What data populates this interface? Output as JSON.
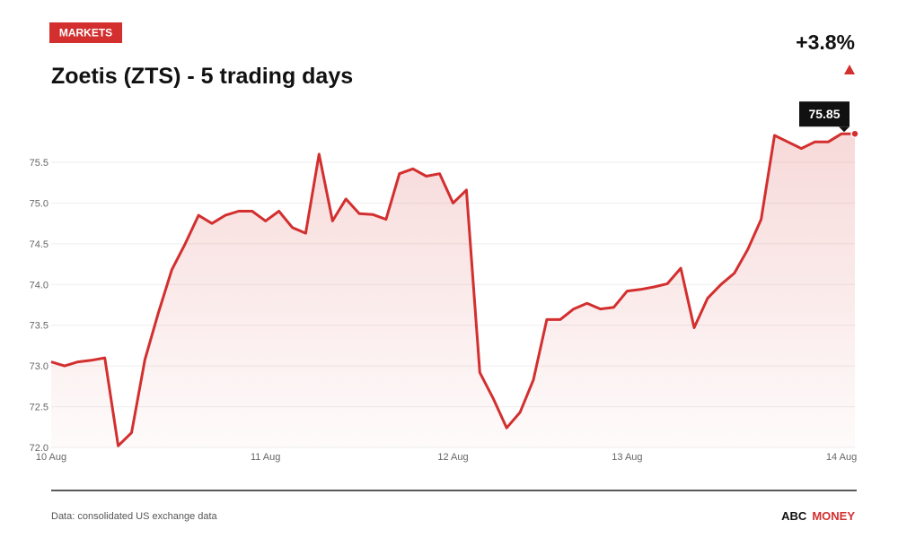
{
  "tag": "MARKETS",
  "change": "+3.8%",
  "footer": {
    "source": "Data: consolidated US exchange data",
    "brand": [
      "ABC",
      "MONEY"
    ]
  },
  "chart_data": {
    "type": "line",
    "title": "Zoetis (ZTS) - 5 trading days",
    "categories": [
      "10 Aug",
      null,
      null,
      null,
      null,
      null,
      null,
      null,
      null,
      null,
      null,
      null,
      null,
      null,
      null,
      null,
      "11 Aug",
      null,
      null,
      null,
      null,
      null,
      null,
      null,
      null,
      null,
      null,
      null,
      null,
      null,
      "12 Aug",
      null,
      null,
      null,
      null,
      null,
      null,
      null,
      null,
      null,
      null,
      null,
      null,
      "13 Aug",
      null,
      null,
      null,
      null,
      null,
      null,
      null,
      null,
      null,
      null,
      null,
      null,
      null,
      null,
      null,
      "14 Aug",
      null
    ],
    "series": [
      {
        "color": "#d32f2f",
        "values": [
          73.05,
          73.0,
          73.05,
          73.07,
          73.1,
          72.02,
          72.18,
          73.08,
          73.65,
          74.18,
          74.5,
          74.85,
          74.75,
          74.85,
          74.9,
          74.9,
          74.78,
          74.9,
          74.7,
          74.63,
          75.6,
          74.78,
          75.05,
          74.87,
          74.86,
          74.8,
          75.36,
          75.42,
          75.33,
          75.36,
          75.0,
          75.16,
          72.92,
          72.6,
          72.24,
          72.43,
          72.83,
          73.57,
          73.57,
          73.7,
          73.77,
          73.7,
          73.72,
          73.92,
          73.94,
          73.97,
          74.01,
          74.2,
          73.47,
          73.83,
          74.0,
          74.14,
          74.43,
          74.8,
          75.83,
          75.75,
          75.67,
          75.75,
          75.75,
          75.85,
          75.85
        ]
      }
    ],
    "ylim": [
      72,
      76
    ],
    "yticks": [
      {
        "value": 72,
        "label": "72.0"
      },
      72.5,
      {
        "value": 73,
        "label": "73.0"
      },
      73.5,
      {
        "value": 74,
        "label": "74.0"
      },
      74.5,
      {
        "value": 75,
        "label": "75.0"
      },
      75.5
    ],
    "grid": true
  }
}
